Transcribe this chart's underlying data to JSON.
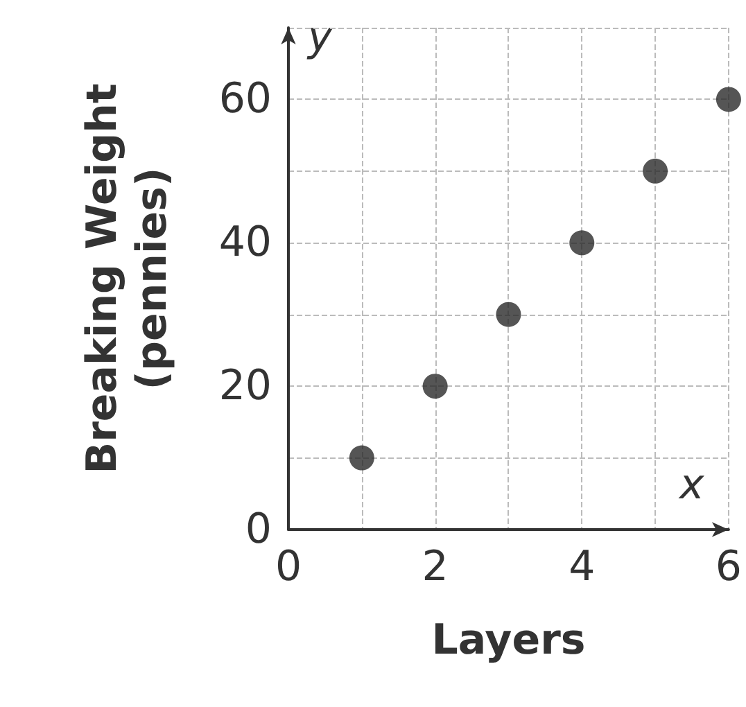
{
  "chart_data": {
    "type": "scatter",
    "xlabel": "Layers",
    "ylabel": "Breaking Weight\n(pennies)",
    "x": [
      1,
      2,
      3,
      4,
      5,
      6
    ],
    "values": [
      10,
      20,
      30,
      40,
      50,
      60
    ],
    "color": "#2b2b2b",
    "marker": "circle",
    "grid": true,
    "xlim": [
      0,
      6
    ],
    "xticks": [
      0,
      {
        "value": 1,
        "label": null
      },
      2,
      {
        "value": 3,
        "label": null
      },
      4,
      {
        "value": 5,
        "label": null
      },
      6
    ],
    "ylim": [
      0,
      70
    ],
    "yticks": [
      0,
      {
        "value": 10,
        "label": null
      },
      20,
      {
        "value": 30,
        "label": null
      },
      40,
      {
        "value": 50,
        "label": null
      },
      60,
      {
        "value": 70,
        "label": null
      }
    ],
    "annotations": [
      "y",
      "x"
    ]
  }
}
